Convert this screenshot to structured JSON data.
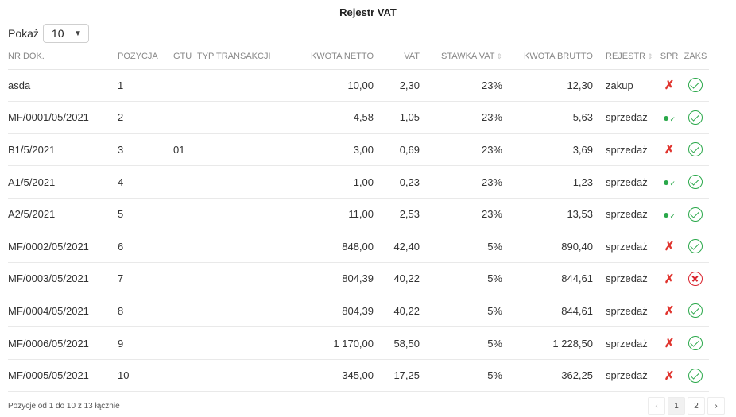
{
  "title": "Rejestr VAT",
  "show": {
    "label": "Pokaż",
    "value": "10"
  },
  "columns": {
    "nr": "NR DOK.",
    "pos": "POZYCJA",
    "gtu": "GTU",
    "typ": "TYP TRANSAKCJI",
    "netto": "KWOTA NETTO",
    "vat": "VAT",
    "stawka": "STAWKA VAT",
    "brutto": "KWOTA BRUTTO",
    "rejestr": "REJESTR",
    "spr": "SPR",
    "zaks": "ZAKS"
  },
  "rows": [
    {
      "nr": "asda",
      "pos": "1",
      "gtu": "",
      "typ": "",
      "netto": "10,00",
      "vat": "2,30",
      "stawka": "23%",
      "brutto": "12,30",
      "rejestr": "zakup",
      "spr": "tools-icon",
      "zaks": "check-circle-icon"
    },
    {
      "nr": "MF/0001/05/2021",
      "pos": "2",
      "gtu": "",
      "typ": "",
      "netto": "4,58",
      "vat": "1,05",
      "stawka": "23%",
      "brutto": "5,63",
      "rejestr": "sprzedaż",
      "spr": "user-check-icon",
      "zaks": "check-circle-icon"
    },
    {
      "nr": "B1/5/2021",
      "pos": "3",
      "gtu": "01",
      "typ": "",
      "netto": "3,00",
      "vat": "0,69",
      "stawka": "23%",
      "brutto": "3,69",
      "rejestr": "sprzedaż",
      "spr": "tools-icon",
      "zaks": "check-circle-icon"
    },
    {
      "nr": "A1/5/2021",
      "pos": "4",
      "gtu": "",
      "typ": "",
      "netto": "1,00",
      "vat": "0,23",
      "stawka": "23%",
      "brutto": "1,23",
      "rejestr": "sprzedaż",
      "spr": "user-check-icon",
      "zaks": "check-circle-icon"
    },
    {
      "nr": "A2/5/2021",
      "pos": "5",
      "gtu": "",
      "typ": "",
      "netto": "11,00",
      "vat": "2,53",
      "stawka": "23%",
      "brutto": "13,53",
      "rejestr": "sprzedaż",
      "spr": "user-check-icon",
      "zaks": "check-circle-icon"
    },
    {
      "nr": "MF/0002/05/2021",
      "pos": "6",
      "gtu": "",
      "typ": "",
      "netto": "848,00",
      "vat": "42,40",
      "stawka": "5%",
      "brutto": "890,40",
      "rejestr": "sprzedaż",
      "spr": "tools-icon",
      "zaks": "check-circle-icon"
    },
    {
      "nr": "MF/0003/05/2021",
      "pos": "7",
      "gtu": "",
      "typ": "",
      "netto": "804,39",
      "vat": "40,22",
      "stawka": "5%",
      "brutto": "844,61",
      "rejestr": "sprzedaż",
      "spr": "tools-icon",
      "zaks": "x-circle-icon"
    },
    {
      "nr": "MF/0004/05/2021",
      "pos": "8",
      "gtu": "",
      "typ": "",
      "netto": "804,39",
      "vat": "40,22",
      "stawka": "5%",
      "brutto": "844,61",
      "rejestr": "sprzedaż",
      "spr": "tools-icon",
      "zaks": "check-circle-icon"
    },
    {
      "nr": "MF/0006/05/2021",
      "pos": "9",
      "gtu": "",
      "typ": "",
      "netto": "1 170,00",
      "vat": "58,50",
      "stawka": "5%",
      "brutto": "1 228,50",
      "rejestr": "sprzedaż",
      "spr": "tools-icon",
      "zaks": "check-circle-icon"
    },
    {
      "nr": "MF/0005/05/2021",
      "pos": "10",
      "gtu": "",
      "typ": "",
      "netto": "345,00",
      "vat": "17,25",
      "stawka": "5%",
      "brutto": "362,25",
      "rejestr": "sprzedaż",
      "spr": "tools-icon",
      "zaks": "check-circle-icon"
    }
  ],
  "footer": {
    "info": "Pozycje od 1 do 10 z 13 łącznie"
  },
  "pagination": {
    "prev": "‹",
    "pages": [
      "1",
      "2"
    ],
    "active": "1",
    "next": "›"
  },
  "colors": {
    "ok": "#2aa84a",
    "error": "#d9232d",
    "tools": "#e0342e"
  }
}
